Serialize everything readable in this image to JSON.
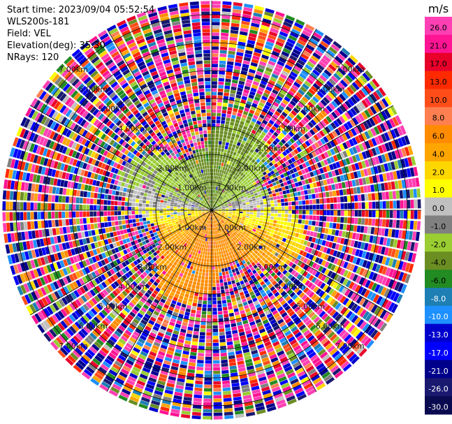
{
  "info": {
    "start_time": "Start time: 2023/09/04 05:52:54",
    "instrument": "WLS200s-181",
    "field": "Field: VEL",
    "elevation": "Elevation(deg): 35.30",
    "nrays": "NRays: 120"
  },
  "chart_data": {
    "type": "heatmap",
    "projection": "polar PPI",
    "field": "VEL",
    "n_rays": 120,
    "elevation_deg": 35.3,
    "range_rings_km": [
      1.0,
      2.0,
      3.0,
      4.0,
      5.0,
      6.0,
      7.0
    ],
    "ring_labels": [
      "1.00km",
      "2.00km",
      "3.00km",
      "4.00km",
      "5.00km",
      "6.00km",
      "7.00km"
    ],
    "max_range_km": 7.5,
    "radial_lines_deg": [
      0,
      30,
      60,
      90,
      120,
      150,
      180,
      210,
      240,
      270,
      300,
      330
    ],
    "structure": {
      "coherent_range_km": 3.1,
      "pattern": "northern half approaching (green, -2 to -6 m/s), southern half receding (yellow/orange, +2 to +6 m/s), near-zero grey band along east-west axis, noisy speckle beyond ~3 km"
    },
    "colorbar": {
      "unit": "m/s",
      "tick_labels": [
        "26.0",
        "21.0",
        "17.0",
        "13.0",
        "10.0",
        "8.0",
        "6.0",
        "4.0",
        "2.0",
        "1.0",
        "0.0",
        "-1.0",
        "-2.0",
        "-4.0",
        "-6.0",
        "-8.0",
        "-10.0",
        "-13.0",
        "-17.0",
        "-21.0",
        "-26.0",
        "-30.0"
      ],
      "range": [
        -30,
        30
      ],
      "colors_top_to_bottom": [
        "#ff3fb4",
        "#ff1493",
        "#e8002a",
        "#ff2a00",
        "#ff4d1a",
        "#ff7f50",
        "#ff8c00",
        "#ffa500",
        "#ffd700",
        "#ffff00",
        "#c0c0c0",
        "#808080",
        "#9acd32",
        "#6b8e23",
        "#228b22",
        "#1e7fb4",
        "#1e90ff",
        "#0000cd",
        "#0000ff",
        "#00008b",
        "#191970",
        "#0a0a50"
      ]
    }
  }
}
